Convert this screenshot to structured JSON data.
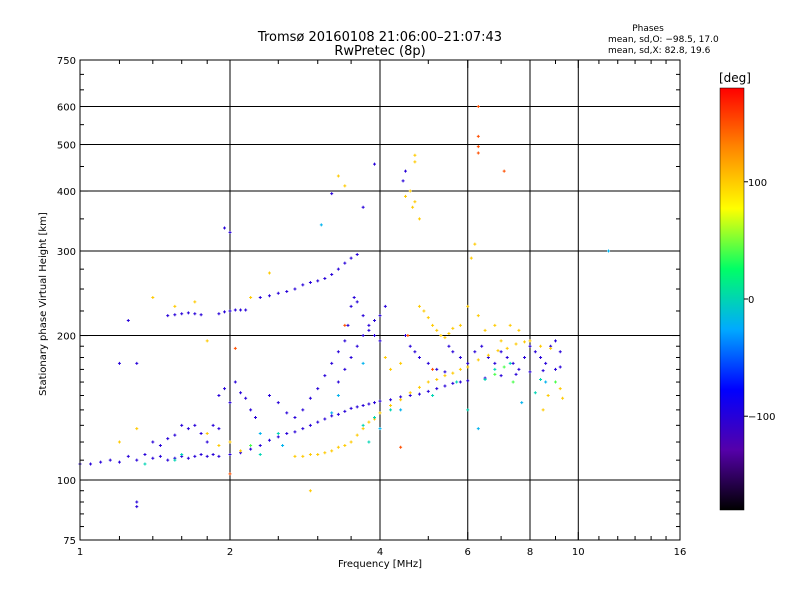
{
  "chart_data": {
    "type": "scatter",
    "title": "Tromsø 20160108 21:06:00–21:07:43",
    "subtitle": "RwPretec (8p)",
    "xlabel": "Frequency [MHz]",
    "ylabel": "Stationary phase Virtual Height [km]",
    "x_scale": "log",
    "y_scale": "log",
    "xlim": [
      1,
      16
    ],
    "ylim": [
      75,
      750
    ],
    "x_ticks": [
      "1",
      "2",
      "4",
      "6",
      "8",
      "10",
      "16"
    ],
    "x_tick_values": [
      1,
      2,
      4,
      6,
      8,
      10,
      16
    ],
    "y_ticks": [
      "75",
      "100",
      "200",
      "300",
      "400",
      "500",
      "600",
      "750"
    ],
    "y_tick_values": [
      75,
      100,
      200,
      300,
      400,
      500,
      600,
      750
    ],
    "grid": true,
    "legend": {
      "heading": "Phases",
      "line1": "mean, sd,O: −98.5, 17.0",
      "line2": "mean, sd,X:  82.8, 19.6",
      "placement": "top-right"
    },
    "colorbar": {
      "label": "[deg]",
      "ticks": [
        "100",
        "0",
        "−100"
      ],
      "tick_values": [
        100,
        0,
        -100
      ],
      "range": [
        -180,
        180
      ],
      "colormap": [
        "#000000",
        "#5500aa",
        "#0000ff",
        "#00aaff",
        "#00ff66",
        "#ffff00",
        "#ff8800",
        "#ff0000"
      ]
    },
    "series": [
      {
        "phase": -100,
        "points": [
          [
            1.0,
            108
          ],
          [
            1.05,
            108
          ],
          [
            1.1,
            109
          ],
          [
            1.15,
            110
          ],
          [
            1.2,
            109
          ],
          [
            1.25,
            112
          ],
          [
            1.3,
            110
          ],
          [
            1.35,
            113
          ],
          [
            1.4,
            111
          ],
          [
            1.45,
            112
          ],
          [
            1.5,
            110
          ],
          [
            1.55,
            111
          ],
          [
            1.6,
            112
          ],
          [
            1.65,
            111
          ],
          [
            1.7,
            112
          ],
          [
            1.75,
            113
          ],
          [
            1.8,
            112
          ],
          [
            1.85,
            113
          ],
          [
            1.9,
            112
          ],
          [
            2.0,
            113
          ],
          [
            2.1,
            114
          ],
          [
            2.2,
            116
          ],
          [
            2.3,
            118
          ],
          [
            2.4,
            121
          ],
          [
            2.5,
            123
          ],
          [
            2.6,
            125
          ],
          [
            2.7,
            126
          ],
          [
            2.8,
            128
          ],
          [
            2.9,
            130
          ],
          [
            3.0,
            132
          ],
          [
            3.1,
            134
          ],
          [
            3.2,
            136
          ],
          [
            3.3,
            137
          ],
          [
            3.4,
            139
          ],
          [
            3.5,
            141
          ],
          [
            3.6,
            142
          ],
          [
            3.7,
            143
          ],
          [
            3.8,
            144
          ],
          [
            3.9,
            145
          ],
          [
            4.0,
            146
          ],
          [
            4.2,
            147
          ],
          [
            4.4,
            149
          ],
          [
            4.6,
            150
          ],
          [
            4.8,
            151
          ],
          [
            5.0,
            153
          ],
          [
            5.2,
            155
          ],
          [
            5.4,
            157
          ],
          [
            5.6,
            159
          ],
          [
            5.8,
            160
          ],
          [
            6.0,
            161
          ],
          [
            6.5,
            163
          ],
          [
            7.0,
            165
          ],
          [
            7.5,
            166
          ],
          [
            8.0,
            168
          ],
          [
            8.5,
            169
          ],
          [
            9.0,
            170
          ],
          [
            9.2,
            172
          ],
          [
            1.5,
            220
          ],
          [
            1.55,
            221
          ],
          [
            1.6,
            222
          ],
          [
            1.65,
            223
          ],
          [
            1.7,
            222
          ],
          [
            1.75,
            221
          ],
          [
            1.9,
            222
          ],
          [
            1.95,
            224
          ],
          [
            2.0,
            225
          ],
          [
            2.05,
            226
          ],
          [
            2.1,
            226
          ],
          [
            2.15,
            226
          ],
          [
            2.3,
            240
          ],
          [
            2.4,
            242
          ],
          [
            2.5,
            245
          ],
          [
            2.6,
            247
          ],
          [
            2.7,
            250
          ],
          [
            2.8,
            255
          ],
          [
            2.9,
            258
          ],
          [
            3.0,
            260
          ],
          [
            3.1,
            263
          ],
          [
            3.2,
            268
          ],
          [
            3.3,
            275
          ],
          [
            3.4,
            283
          ],
          [
            3.5,
            290
          ],
          [
            3.6,
            295
          ],
          [
            2.4,
            150
          ],
          [
            2.5,
            145
          ],
          [
            2.6,
            138
          ],
          [
            2.7,
            135
          ],
          [
            2.8,
            140
          ],
          [
            2.9,
            148
          ],
          [
            3.0,
            155
          ],
          [
            3.1,
            165
          ],
          [
            3.2,
            175
          ],
          [
            3.3,
            185
          ],
          [
            3.4,
            195
          ],
          [
            3.45,
            210
          ],
          [
            3.5,
            230
          ],
          [
            3.55,
            240
          ],
          [
            3.6,
            235
          ],
          [
            3.7,
            220
          ],
          [
            3.8,
            210
          ],
          [
            3.9,
            200
          ],
          [
            4.0,
            195
          ],
          [
            3.3,
            160
          ],
          [
            3.4,
            170
          ],
          [
            3.5,
            180
          ],
          [
            3.6,
            190
          ],
          [
            3.7,
            200
          ],
          [
            3.8,
            205
          ],
          [
            3.9,
            215
          ],
          [
            4.0,
            220
          ],
          [
            4.1,
            230
          ],
          [
            4.5,
            200
          ],
          [
            4.6,
            190
          ],
          [
            4.7,
            185
          ],
          [
            4.8,
            180
          ],
          [
            5.0,
            175
          ],
          [
            5.2,
            170
          ],
          [
            5.4,
            168
          ],
          [
            5.5,
            190
          ],
          [
            5.6,
            185
          ],
          [
            5.8,
            180
          ],
          [
            6.0,
            175
          ],
          [
            6.2,
            185
          ],
          [
            6.4,
            190
          ],
          [
            6.6,
            180
          ],
          [
            6.8,
            175
          ],
          [
            7.0,
            185
          ],
          [
            7.2,
            180
          ],
          [
            7.4,
            175
          ],
          [
            7.6,
            170
          ],
          [
            7.8,
            180
          ],
          [
            8.0,
            190
          ],
          [
            8.2,
            185
          ],
          [
            8.4,
            180
          ],
          [
            8.6,
            175
          ],
          [
            8.8,
            190
          ],
          [
            9.0,
            195
          ],
          [
            9.2,
            185
          ],
          [
            1.9,
            150
          ],
          [
            1.95,
            155
          ],
          [
            2.0,
            145
          ],
          [
            2.05,
            160
          ],
          [
            2.1,
            152
          ],
          [
            2.15,
            148
          ],
          [
            2.2,
            140
          ],
          [
            2.25,
            135
          ],
          [
            1.7,
            130
          ],
          [
            1.75,
            125
          ],
          [
            1.8,
            120
          ],
          [
            1.85,
            130
          ],
          [
            1.9,
            128
          ],
          [
            1.4,
            120
          ],
          [
            1.45,
            118
          ],
          [
            1.5,
            122
          ],
          [
            1.55,
            124
          ],
          [
            1.6,
            130
          ],
          [
            1.65,
            128
          ],
          [
            3.2,
            395
          ],
          [
            3.7,
            370
          ],
          [
            3.9,
            455
          ],
          [
            4.5,
            440
          ],
          [
            4.45,
            420
          ],
          [
            1.95,
            335
          ],
          [
            2.0,
            328
          ],
          [
            1.3,
            88
          ],
          [
            1.3,
            90
          ],
          [
            1.25,
            215
          ],
          [
            1.3,
            175
          ],
          [
            1.2,
            175
          ]
        ]
      },
      {
        "phase": 100,
        "points": [
          [
            2.7,
            112
          ],
          [
            2.8,
            112
          ],
          [
            2.9,
            113
          ],
          [
            3.0,
            113
          ],
          [
            3.1,
            114
          ],
          [
            3.2,
            115
          ],
          [
            3.3,
            117
          ],
          [
            3.4,
            118
          ],
          [
            3.5,
            120
          ],
          [
            3.6,
            124
          ],
          [
            3.7,
            128
          ],
          [
            3.8,
            132
          ],
          [
            3.9,
            134
          ],
          [
            4.0,
            138
          ],
          [
            4.2,
            143
          ],
          [
            4.4,
            147
          ],
          [
            4.6,
            152
          ],
          [
            4.8,
            156
          ],
          [
            5.0,
            160
          ],
          [
            5.2,
            162
          ],
          [
            5.4,
            165
          ],
          [
            5.6,
            167
          ],
          [
            5.8,
            170
          ],
          [
            6.0,
            172
          ],
          [
            6.3,
            178
          ],
          [
            6.6,
            182
          ],
          [
            6.9,
            186
          ],
          [
            7.2,
            188
          ],
          [
            7.5,
            192
          ],
          [
            7.8,
            194
          ],
          [
            8.0,
            195
          ],
          [
            8.4,
            190
          ],
          [
            8.8,
            188
          ],
          [
            4.8,
            230
          ],
          [
            4.9,
            225
          ],
          [
            5.0,
            218
          ],
          [
            5.1,
            210
          ],
          [
            5.2,
            205
          ],
          [
            5.3,
            200
          ],
          [
            5.4,
            198
          ],
          [
            5.5,
            202
          ],
          [
            5.6,
            207
          ],
          [
            4.7,
            475
          ],
          [
            4.7,
            460
          ],
          [
            4.7,
            380
          ],
          [
            4.65,
            370
          ],
          [
            4.8,
            350
          ],
          [
            4.6,
            400
          ],
          [
            4.5,
            390
          ],
          [
            3.4,
            410
          ],
          [
            1.8,
            125
          ],
          [
            1.9,
            118
          ],
          [
            2.0,
            120
          ],
          [
            2.1,
            115
          ],
          [
            1.4,
            240
          ],
          [
            1.55,
            230
          ],
          [
            1.7,
            235
          ],
          [
            1.8,
            195
          ],
          [
            2.2,
            240
          ],
          [
            2.4,
            270
          ],
          [
            4.1,
            180
          ],
          [
            4.2,
            170
          ],
          [
            4.4,
            175
          ],
          [
            5.8,
            210
          ],
          [
            6.0,
            230
          ],
          [
            6.1,
            290
          ],
          [
            6.2,
            310
          ],
          [
            6.3,
            220
          ],
          [
            6.5,
            205
          ],
          [
            6.8,
            210
          ],
          [
            7.0,
            195
          ],
          [
            7.3,
            210
          ],
          [
            7.6,
            205
          ],
          [
            8.5,
            140
          ],
          [
            8.7,
            150
          ],
          [
            9.2,
            155
          ],
          [
            9.3,
            148
          ],
          [
            1.2,
            120
          ],
          [
            1.3,
            128
          ],
          [
            2.9,
            95
          ],
          [
            3.3,
            430
          ]
        ]
      },
      {
        "phase": 0,
        "points": [
          [
            1.55,
            110
          ],
          [
            1.6,
            113
          ],
          [
            2.5,
            125
          ],
          [
            3.7,
            130
          ],
          [
            3.9,
            135
          ],
          [
            4.2,
            140
          ],
          [
            5.1,
            150
          ],
          [
            5.7,
            160
          ],
          [
            6.0,
            140
          ],
          [
            6.5,
            162
          ],
          [
            6.8,
            170
          ],
          [
            7.3,
            175
          ],
          [
            8.2,
            152
          ],
          [
            8.4,
            162
          ],
          [
            3.8,
            120
          ],
          [
            2.3,
            113
          ],
          [
            1.35,
            108
          ]
        ]
      },
      {
        "phase": 40,
        "points": [
          [
            6.8,
            166
          ],
          [
            7.1,
            172
          ],
          [
            7.4,
            160
          ],
          [
            2.2,
            118
          ],
          [
            9.0,
            160
          ]
        ]
      },
      {
        "phase": -20,
        "points": [
          [
            2.3,
            125
          ],
          [
            2.55,
            118
          ],
          [
            3.2,
            138
          ],
          [
            3.3,
            150
          ],
          [
            3.7,
            175
          ],
          [
            4.0,
            128
          ],
          [
            4.4,
            140
          ],
          [
            6.3,
            128
          ],
          [
            7.7,
            145
          ],
          [
            8.6,
            160
          ],
          [
            3.05,
            340
          ],
          [
            11.5,
            300
          ]
        ]
      },
      {
        "phase": 150,
        "points": [
          [
            6.3,
            600
          ],
          [
            6.3,
            520
          ],
          [
            6.3,
            495
          ],
          [
            6.3,
            480
          ],
          [
            7.1,
            440
          ],
          [
            2.05,
            188
          ],
          [
            4.4,
            117
          ],
          [
            4.55,
            200
          ],
          [
            3.4,
            210
          ],
          [
            5.1,
            170
          ],
          [
            2.0,
            103
          ]
        ]
      }
    ]
  }
}
